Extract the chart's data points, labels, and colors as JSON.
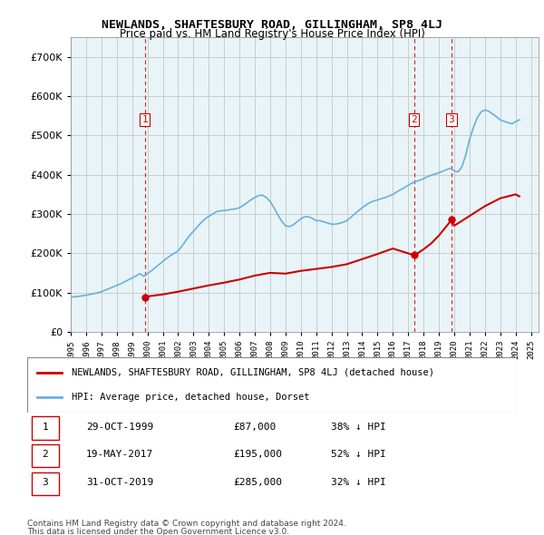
{
  "title": "NEWLANDS, SHAFTESBURY ROAD, GILLINGHAM, SP8 4LJ",
  "subtitle": "Price paid vs. HM Land Registry's House Price Index (HPI)",
  "legend_entry1": "NEWLANDS, SHAFTESBURY ROAD, GILLINGHAM, SP8 4LJ (detached house)",
  "legend_entry2": "HPI: Average price, detached house, Dorset",
  "footnote1": "Contains HM Land Registry data © Crown copyright and database right 2024.",
  "footnote2": "This data is licensed under the Open Government Licence v3.0.",
  "transactions": [
    {
      "num": 1,
      "date": "29-OCT-1999",
      "price": "£87,000",
      "pct": "38% ↓ HPI"
    },
    {
      "num": 2,
      "date": "19-MAY-2017",
      "price": "£195,000",
      "pct": "52% ↓ HPI"
    },
    {
      "num": 3,
      "date": "31-OCT-2019",
      "price": "£285,000",
      "pct": "32% ↓ HPI"
    }
  ],
  "transaction_years": [
    1999.83,
    2017.38,
    2019.83
  ],
  "transaction_prices": [
    87000,
    195000,
    285000
  ],
  "hpi_color": "#6ab0dc",
  "price_color": "#cc0000",
  "vline_color": "#cc0000",
  "background_color": "#e8f4f8",
  "ylim": [
    0,
    750000
  ],
  "yticks": [
    0,
    100000,
    200000,
    300000,
    400000,
    500000,
    600000,
    700000
  ],
  "xmin": 1995,
  "xmax": 2025.5,
  "grid_color": "#cccccc",
  "hpi_data_x": [
    1995.0,
    1995.25,
    1995.5,
    1995.75,
    1996.0,
    1996.25,
    1996.5,
    1996.75,
    1997.0,
    1997.25,
    1997.5,
    1997.75,
    1998.0,
    1998.25,
    1998.5,
    1998.75,
    1999.0,
    1999.25,
    1999.5,
    1999.75,
    2000.0,
    2000.25,
    2000.5,
    2000.75,
    2001.0,
    2001.25,
    2001.5,
    2001.75,
    2002.0,
    2002.25,
    2002.5,
    2002.75,
    2003.0,
    2003.25,
    2003.5,
    2003.75,
    2004.0,
    2004.25,
    2004.5,
    2004.75,
    2005.0,
    2005.25,
    2005.5,
    2005.75,
    2006.0,
    2006.25,
    2006.5,
    2006.75,
    2007.0,
    2007.25,
    2007.5,
    2007.75,
    2008.0,
    2008.25,
    2008.5,
    2008.75,
    2009.0,
    2009.25,
    2009.5,
    2009.75,
    2010.0,
    2010.25,
    2010.5,
    2010.75,
    2011.0,
    2011.25,
    2011.5,
    2011.75,
    2012.0,
    2012.25,
    2012.5,
    2012.75,
    2013.0,
    2013.25,
    2013.5,
    2013.75,
    2014.0,
    2014.25,
    2014.5,
    2014.75,
    2015.0,
    2015.25,
    2015.5,
    2015.75,
    2016.0,
    2016.25,
    2016.5,
    2016.75,
    2017.0,
    2017.25,
    2017.5,
    2017.75,
    2018.0,
    2018.25,
    2018.5,
    2018.75,
    2019.0,
    2019.25,
    2019.5,
    2019.75,
    2020.0,
    2020.25,
    2020.5,
    2020.75,
    2021.0,
    2021.25,
    2021.5,
    2021.75,
    2022.0,
    2022.25,
    2022.5,
    2022.75,
    2023.0,
    2023.25,
    2023.5,
    2023.75,
    2024.0,
    2024.25
  ],
  "hpi_data_y": [
    88000,
    89000,
    90000,
    91500,
    93000,
    95000,
    97000,
    99000,
    102000,
    106000,
    110000,
    114000,
    118000,
    122000,
    127000,
    132000,
    137000,
    142000,
    148000,
    141000,
    148000,
    155000,
    163000,
    171000,
    179000,
    187000,
    194000,
    200000,
    206000,
    218000,
    232000,
    245000,
    256000,
    267000,
    278000,
    287000,
    294000,
    300000,
    306000,
    308000,
    309000,
    310000,
    312000,
    313000,
    316000,
    322000,
    329000,
    336000,
    342000,
    347000,
    348000,
    342000,
    332000,
    316000,
    298000,
    282000,
    270000,
    268000,
    272000,
    280000,
    288000,
    293000,
    293000,
    289000,
    283000,
    283000,
    280000,
    277000,
    274000,
    274000,
    276000,
    279000,
    283000,
    291000,
    300000,
    308000,
    316000,
    323000,
    329000,
    333000,
    336000,
    339000,
    342000,
    346000,
    350000,
    356000,
    362000,
    367000,
    373000,
    379000,
    383000,
    386000,
    390000,
    395000,
    399000,
    402000,
    405000,
    409000,
    413000,
    417000,
    410000,
    407000,
    420000,
    450000,
    490000,
    520000,
    545000,
    560000,
    565000,
    562000,
    555000,
    548000,
    540000,
    536000,
    533000,
    530000,
    535000,
    540000
  ],
  "price_line_x": [
    1999.83,
    2000.0,
    2001.0,
    2002.0,
    2003.0,
    2004.0,
    2005.0,
    2006.0,
    2007.0,
    2008.0,
    2009.0,
    2010.0,
    2011.0,
    2012.0,
    2013.0,
    2014.0,
    2015.0,
    2016.0,
    2017.38,
    2017.5,
    2018.0,
    2018.5,
    2019.0,
    2019.83,
    2020.0,
    2021.0,
    2022.0,
    2023.0,
    2024.0,
    2024.25
  ],
  "price_line_y": [
    87000,
    90000,
    95000,
    102000,
    110000,
    118000,
    125000,
    133000,
    143000,
    150000,
    148000,
    155000,
    160000,
    165000,
    172000,
    185000,
    198000,
    212000,
    195000,
    197000,
    210000,
    225000,
    245000,
    285000,
    270000,
    295000,
    320000,
    340000,
    350000,
    345000
  ]
}
